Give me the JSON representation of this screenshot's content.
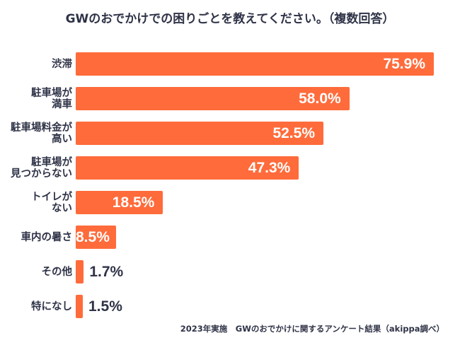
{
  "chart_data": {
    "type": "bar",
    "orientation": "horizontal",
    "title": "GWのおでかけでの困りごとを教えてください。（複数回答）",
    "categories": [
      [
        "渋滞"
      ],
      [
        "駐車場が",
        "満車"
      ],
      [
        "駐車場料金が",
        "高い"
      ],
      [
        "駐車場が",
        "見つからない"
      ],
      [
        "トイレが",
        "ない"
      ],
      [
        "車内の暑さ"
      ],
      [
        "その他"
      ],
      [
        "特になし"
      ]
    ],
    "values": [
      75.9,
      58.0,
      52.5,
      47.3,
      18.5,
      8.5,
      1.7,
      1.5
    ],
    "value_labels": [
      "75.9%",
      "58.0%",
      "52.5%",
      "47.3%",
      "18.5%",
      "8.5%",
      "1.7%",
      "1.5%"
    ],
    "unit": "%",
    "xlabel": "",
    "ylabel": "",
    "xlim": [
      0,
      75.9
    ],
    "grid": false,
    "bar_color": "#ff6b3b",
    "note": "2023年実施　GWのおでかけに関するアンケート結果（akippa調べ）"
  }
}
